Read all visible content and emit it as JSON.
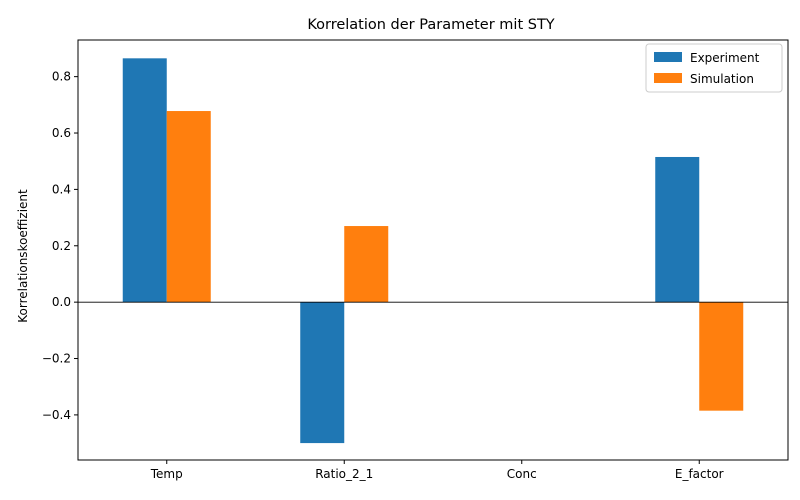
{
  "chart_data": {
    "type": "bar",
    "title": "Korrelation der Parameter mit STY",
    "xlabel": "",
    "ylabel": "Korrelationskoeffizient",
    "categories": [
      "Temp",
      "Ratio_2_1",
      "Conc",
      "E_factor"
    ],
    "series": [
      {
        "name": "Experiment",
        "color": "#1f77b4",
        "values": [
          0.865,
          -0.5,
          0.0,
          0.515
        ]
      },
      {
        "name": "Simulation",
        "color": "#ff7f0e",
        "values": [
          0.678,
          0.27,
          0.0,
          -0.385
        ]
      }
    ],
    "ylim": [
      -0.56,
      0.93
    ],
    "yticks": [
      -0.4,
      -0.2,
      0.0,
      0.2,
      0.4,
      0.6,
      0.8
    ],
    "ytick_labels": [
      "−0.4",
      "−0.2",
      "0.0",
      "0.2",
      "0.4",
      "0.6",
      "0.8"
    ],
    "zero_line": true,
    "grid": false,
    "legend_position": "top-right"
  }
}
